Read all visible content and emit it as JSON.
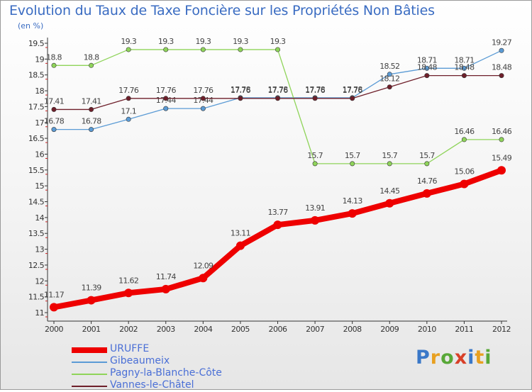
{
  "header": {
    "title": "Evolution du Taux de Taxe Foncière sur les Propriétés Non Bâties",
    "subtitle": "(en %)"
  },
  "logo": {
    "text": "Proxiti",
    "letter_colors": [
      "#3a78c8",
      "#e8a020",
      "#58a838",
      "#d84028",
      "#3a78c8",
      "#e8a020",
      "#58a838"
    ]
  },
  "chart_data": {
    "type": "line",
    "title": "Evolution du Taux de Taxe Foncière sur les Propriétés Non Bâties",
    "subtitle": "(en %)",
    "x": [
      "2000",
      "2001",
      "2002",
      "2003",
      "2004",
      "2005",
      "2006",
      "2007",
      "2008",
      "2009",
      "2010",
      "2011",
      "2012"
    ],
    "ylim": [
      11,
      19.5
    ],
    "yticks": [
      11,
      11.5,
      12,
      12.5,
      13,
      13.5,
      14,
      14.5,
      15,
      15.5,
      16,
      16.5,
      17,
      17.5,
      18,
      18.5,
      19,
      19.5
    ],
    "grid": false,
    "legend_position": "bottom-left",
    "series": [
      {
        "name": "URUFFE",
        "color": "#ee0000",
        "values": [
          11.17,
          11.39,
          11.62,
          11.74,
          12.09,
          13.11,
          13.77,
          13.91,
          14.13,
          14.45,
          14.76,
          15.06,
          15.49
        ],
        "labels": [
          "11.17",
          "11.39",
          "11.62",
          "11.74",
          "12.09",
          "13.11",
          "13.77",
          "13.91",
          "14.13",
          "14.45",
          "14.76",
          "15.06",
          "15.49"
        ]
      },
      {
        "name": "Gibeaumeix",
        "color": "#5b9bd5",
        "values": [
          16.78,
          16.78,
          17.1,
          17.44,
          17.44,
          17.78,
          17.78,
          17.78,
          17.78,
          18.52,
          18.71,
          18.71,
          19.27
        ],
        "labels": [
          "16.78",
          "16.78",
          "17.1",
          "17.44",
          "17.44",
          "17.78",
          "17.78",
          "17.78",
          "17.78",
          "18.52",
          "18.71",
          "18.71",
          "19.27"
        ]
      },
      {
        "name": "Pagny-la-Blanche-Côte",
        "color": "#8fd45a",
        "values": [
          18.8,
          18.8,
          19.3,
          19.3,
          19.3,
          19.3,
          19.3,
          15.7,
          15.7,
          15.7,
          15.7,
          16.46,
          16.46
        ],
        "labels": [
          "18.8",
          "18.8",
          "19.3",
          "19.3",
          "19.3",
          "19.3",
          "19.3",
          "15.7",
          "15.7",
          "15.7",
          "15.7",
          "16.46",
          "16.46"
        ]
      },
      {
        "name": "Vannes-le-Châtel",
        "color": "#6e1f2a",
        "values": [
          17.41,
          17.41,
          17.76,
          17.76,
          17.76,
          17.76,
          17.76,
          17.76,
          17.76,
          18.12,
          18.48,
          18.48,
          18.48
        ],
        "labels": [
          "17.41",
          "17.41",
          "17.76",
          "17.76",
          "17.76",
          "17.76",
          "17.76",
          "17.76",
          "17.76",
          "18.12",
          "18.48",
          "18.48",
          "18.48"
        ]
      }
    ]
  }
}
